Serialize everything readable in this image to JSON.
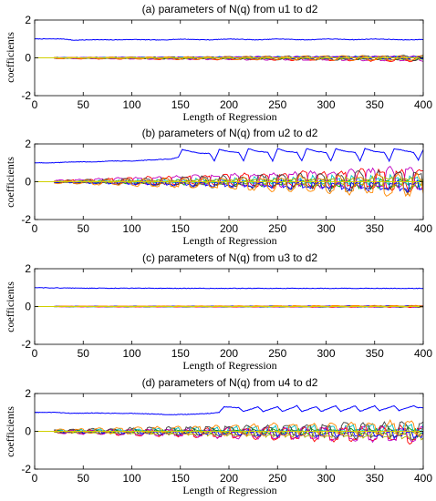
{
  "chart_data": [
    {
      "type": "line",
      "title": "(a) parameters of N(q) from u1 to d2",
      "xlabel": "Length of Regression",
      "ylabel": "coefficients",
      "xlim": [
        0,
        400
      ],
      "ylim": [
        -2,
        2
      ],
      "xticks": [
        "0",
        "50",
        "100",
        "150",
        "200",
        "250",
        "300",
        "350",
        "400"
      ],
      "yticks": [
        "2",
        "0",
        "-2"
      ],
      "grid": false,
      "main_series": {
        "color": "#0000ff",
        "x": [
          0,
          30,
          40,
          60,
          80,
          100,
          130,
          150,
          180,
          200,
          230,
          250,
          280,
          300,
          330,
          350,
          380,
          400
        ],
        "y": [
          1.0,
          1.0,
          0.93,
          0.96,
          0.95,
          0.97,
          0.94,
          0.99,
          0.95,
          1.0,
          0.95,
          1.0,
          0.95,
          1.0,
          0.96,
          1.0,
          0.95,
          0.97
        ]
      },
      "small_series": {
        "colors": [
          "#00a000",
          "#ff0000",
          "#00c0c0",
          "#c000c0",
          "#b0b000",
          "#404040",
          "#0000ff",
          "#ff8800"
        ],
        "start_x": 20,
        "amplitude_start": 0.04,
        "amplitude_end": 0.16
      }
    },
    {
      "type": "line",
      "title": "(b) parameters of N(q) from u2 to d2",
      "xlabel": "Length of Regression",
      "ylabel": "coefficients",
      "xlim": [
        0,
        400
      ],
      "ylim": [
        -2,
        2
      ],
      "xticks": [
        "0",
        "50",
        "100",
        "150",
        "200",
        "250",
        "300",
        "350",
        "400"
      ],
      "yticks": [
        "2",
        "0",
        "-2"
      ],
      "grid": false,
      "main_series": {
        "color": "#0000ff",
        "x": [
          0,
          20,
          40,
          60,
          80,
          100,
          120,
          140,
          148,
          152,
          160,
          170,
          180,
          185,
          190,
          200,
          210,
          215,
          220,
          230,
          240,
          245,
          250,
          260,
          270,
          275,
          280,
          290,
          300,
          305,
          310,
          320,
          330,
          335,
          340,
          350,
          360,
          365,
          370,
          380,
          390,
          395,
          400
        ],
        "y": [
          1.0,
          1.0,
          1.05,
          1.05,
          1.1,
          1.1,
          1.15,
          1.2,
          1.3,
          1.7,
          1.6,
          1.5,
          1.5,
          1.1,
          1.7,
          1.6,
          1.55,
          1.1,
          1.75,
          1.6,
          1.55,
          1.1,
          1.75,
          1.6,
          1.55,
          1.1,
          1.75,
          1.6,
          1.55,
          1.1,
          1.75,
          1.6,
          1.55,
          1.1,
          1.75,
          1.6,
          1.55,
          1.1,
          1.75,
          1.65,
          1.55,
          1.15,
          1.7
        ]
      },
      "small_series": {
        "colors": [
          "#00a000",
          "#ff0000",
          "#00c0c0",
          "#c000c0",
          "#b0b000",
          "#404040",
          "#0000ff",
          "#ff8800"
        ],
        "start_x": 20,
        "amplitude_start": 0.08,
        "amplitude_end": 0.7
      }
    },
    {
      "type": "line",
      "title": "(c) parameters of N(q) from u3 to d2",
      "xlabel": "Length of Regression",
      "ylabel": "coefficients",
      "xlim": [
        0,
        400
      ],
      "ylim": [
        -2,
        2
      ],
      "xticks": [
        "0",
        "50",
        "100",
        "150",
        "200",
        "250",
        "300",
        "350",
        "400"
      ],
      "yticks": [
        "2",
        "0",
        "-2"
      ],
      "grid": false,
      "main_series": {
        "color": "#0000ff",
        "x": [
          0,
          50,
          100,
          150,
          200,
          250,
          300,
          350,
          400
        ],
        "y": [
          1.0,
          0.97,
          0.97,
          0.96,
          0.96,
          0.96,
          0.96,
          0.96,
          0.96
        ]
      },
      "small_series": {
        "colors": [
          "#00a000",
          "#ff0000",
          "#00c0c0",
          "#c000c0",
          "#b0b000",
          "#404040",
          "#0000ff",
          "#ff8800"
        ],
        "start_x": 20,
        "amplitude_start": 0.02,
        "amplitude_end": 0.05
      }
    },
    {
      "type": "line",
      "title": "(d) parameters of N(q) from u4 to d2",
      "xlabel": "Length of Regression",
      "ylabel": "coefficients",
      "xlim": [
        0,
        400
      ],
      "ylim": [
        -2,
        2
      ],
      "xticks": [
        "0",
        "50",
        "100",
        "150",
        "200",
        "250",
        "300",
        "350",
        "400"
      ],
      "yticks": [
        "2",
        "0",
        "-2"
      ],
      "grid": false,
      "main_series": {
        "color": "#0000ff",
        "x": [
          0,
          20,
          40,
          60,
          80,
          100,
          120,
          140,
          160,
          180,
          190,
          195,
          210,
          215,
          230,
          235,
          250,
          255,
          270,
          275,
          290,
          295,
          310,
          315,
          330,
          335,
          350,
          355,
          370,
          375,
          390,
          395,
          400
        ],
        "y": [
          1.0,
          1.0,
          0.95,
          0.97,
          0.95,
          0.95,
          0.92,
          0.88,
          0.9,
          0.95,
          1.0,
          1.3,
          1.25,
          1.05,
          1.3,
          1.05,
          1.3,
          1.05,
          1.35,
          1.05,
          1.3,
          1.05,
          1.35,
          1.05,
          1.35,
          1.05,
          1.35,
          1.1,
          1.35,
          1.1,
          1.35,
          1.25,
          1.25
        ]
      },
      "small_series": {
        "colors": [
          "#00a000",
          "#ff0000",
          "#00c0c0",
          "#c000c0",
          "#b0b000",
          "#404040",
          "#0000ff",
          "#ff8800"
        ],
        "start_x": 20,
        "amplitude_start": 0.1,
        "amplitude_end": 0.55
      }
    }
  ]
}
